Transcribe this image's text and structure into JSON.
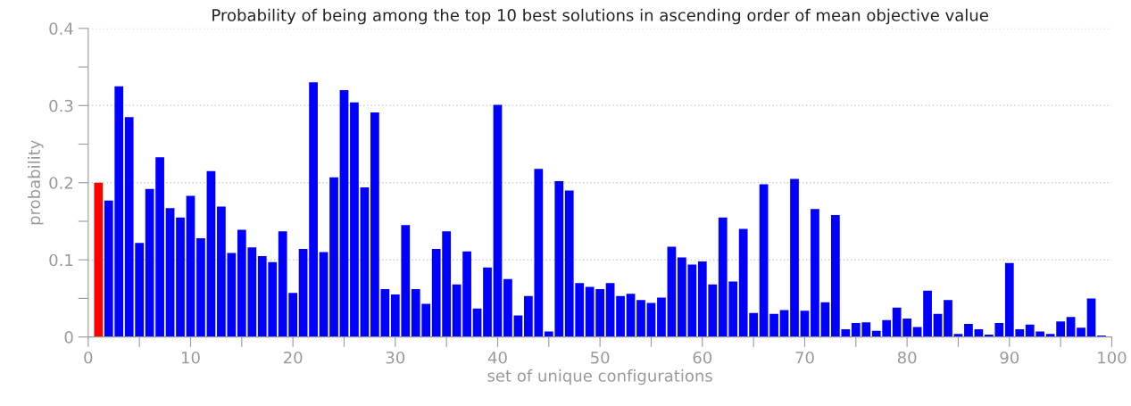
{
  "chart_data": {
    "type": "bar",
    "title": "Probability of being among the top 10 best solutions in ascending order of mean objective value",
    "xlabel": "set of unique configurations",
    "ylabel": "probability",
    "x": [
      1,
      2,
      3,
      4,
      5,
      6,
      7,
      8,
      9,
      10,
      11,
      12,
      13,
      14,
      15,
      16,
      17,
      18,
      19,
      20,
      21,
      22,
      23,
      24,
      25,
      26,
      27,
      28,
      29,
      30,
      31,
      32,
      33,
      34,
      35,
      36,
      37,
      38,
      39,
      40,
      41,
      42,
      43,
      44,
      45,
      46,
      47,
      48,
      49,
      50,
      51,
      52,
      53,
      54,
      55,
      56,
      57,
      58,
      59,
      60,
      61,
      62,
      63,
      64,
      65,
      66,
      67,
      68,
      69,
      70,
      71,
      72,
      73,
      74,
      75,
      76,
      77,
      78,
      79,
      80,
      81,
      82,
      83,
      84,
      85,
      86,
      87,
      88,
      89,
      90,
      91,
      92,
      93,
      94,
      95,
      96,
      97,
      98,
      99
    ],
    "values": [
      0.2,
      0.177,
      0.325,
      0.285,
      0.122,
      0.192,
      0.233,
      0.167,
      0.155,
      0.183,
      0.128,
      0.215,
      0.169,
      0.109,
      0.139,
      0.116,
      0.105,
      0.097,
      0.137,
      0.057,
      0.114,
      0.33,
      0.11,
      0.207,
      0.32,
      0.304,
      0.194,
      0.291,
      0.062,
      0.055,
      0.145,
      0.062,
      0.043,
      0.114,
      0.137,
      0.068,
      0.111,
      0.037,
      0.09,
      0.301,
      0.075,
      0.028,
      0.053,
      0.218,
      0.007,
      0.202,
      0.19,
      0.07,
      0.065,
      0.062,
      0.07,
      0.053,
      0.056,
      0.048,
      0.044,
      0.051,
      0.117,
      0.103,
      0.094,
      0.098,
      0.068,
      0.155,
      0.072,
      0.14,
      0.031,
      0.198,
      0.03,
      0.035,
      0.205,
      0.034,
      0.166,
      0.045,
      0.158,
      0.01,
      0.018,
      0.019,
      0.008,
      0.022,
      0.038,
      0.024,
      0.013,
      0.06,
      0.03,
      0.048,
      0.004,
      0.017,
      0.01,
      0.003,
      0.018,
      0.096,
      0.01,
      0.016,
      0.007,
      0.004,
      0.02,
      0.026,
      0.012,
      0.05,
      0.002
    ],
    "colors": [
      "#ff0000",
      "#0000ff",
      "#0000ff",
      "#0000ff",
      "#0000ff",
      "#0000ff",
      "#0000ff",
      "#0000ff",
      "#0000ff",
      "#0000ff",
      "#0000ff",
      "#0000ff",
      "#0000ff",
      "#0000ff",
      "#0000ff",
      "#0000ff",
      "#0000ff",
      "#0000ff",
      "#0000ff",
      "#0000ff",
      "#0000ff",
      "#0000ff",
      "#0000ff",
      "#0000ff",
      "#0000ff",
      "#0000ff",
      "#0000ff",
      "#0000ff",
      "#0000ff",
      "#0000ff",
      "#0000ff",
      "#0000ff",
      "#0000ff",
      "#0000ff",
      "#0000ff",
      "#0000ff",
      "#0000ff",
      "#0000ff",
      "#0000ff",
      "#0000ff",
      "#0000ff",
      "#0000ff",
      "#0000ff",
      "#0000ff",
      "#0000ff",
      "#0000ff",
      "#0000ff",
      "#0000ff",
      "#0000ff",
      "#0000ff",
      "#0000ff",
      "#0000ff",
      "#0000ff",
      "#0000ff",
      "#0000ff",
      "#0000ff",
      "#0000ff",
      "#0000ff",
      "#0000ff",
      "#0000ff",
      "#0000ff",
      "#0000ff",
      "#0000ff",
      "#0000ff",
      "#0000ff",
      "#0000ff",
      "#0000ff",
      "#0000ff",
      "#0000ff",
      "#0000ff",
      "#0000ff",
      "#0000ff",
      "#0000ff",
      "#0000ff",
      "#0000ff",
      "#0000ff",
      "#0000ff",
      "#0000ff",
      "#0000ff",
      "#0000ff",
      "#0000ff",
      "#0000ff",
      "#0000ff",
      "#0000ff",
      "#0000ff",
      "#0000ff",
      "#0000ff",
      "#0000ff",
      "#0000ff",
      "#0000ff",
      "#0000ff",
      "#0000ff",
      "#0000ff",
      "#0000ff",
      "#0000ff",
      "#0000ff",
      "#0000ff",
      "#0000ff",
      "#0000ff"
    ],
    "xlim": [
      0,
      100
    ],
    "xticks": [
      0,
      {
        "value": 5,
        "label": null
      },
      10,
      {
        "value": 15,
        "label": null
      },
      20,
      {
        "value": 25,
        "label": null
      },
      30,
      {
        "value": 35,
        "label": null
      },
      40,
      {
        "value": 45,
        "label": null
      },
      50,
      {
        "value": 55,
        "label": null
      },
      60,
      {
        "value": 65,
        "label": null
      },
      70,
      {
        "value": 75,
        "label": null
      },
      80,
      {
        "value": 85,
        "label": null
      },
      90,
      {
        "value": 95,
        "label": null
      },
      100
    ],
    "ylim": [
      0,
      0.4
    ],
    "yticks": [
      0,
      {
        "value": 0.05,
        "label": null
      },
      0.1,
      {
        "value": 0.15,
        "label": null
      },
      0.2,
      {
        "value": 0.25,
        "label": null
      },
      0.3,
      {
        "value": 0.35,
        "label": null
      },
      0.4
    ],
    "grid": "y"
  }
}
